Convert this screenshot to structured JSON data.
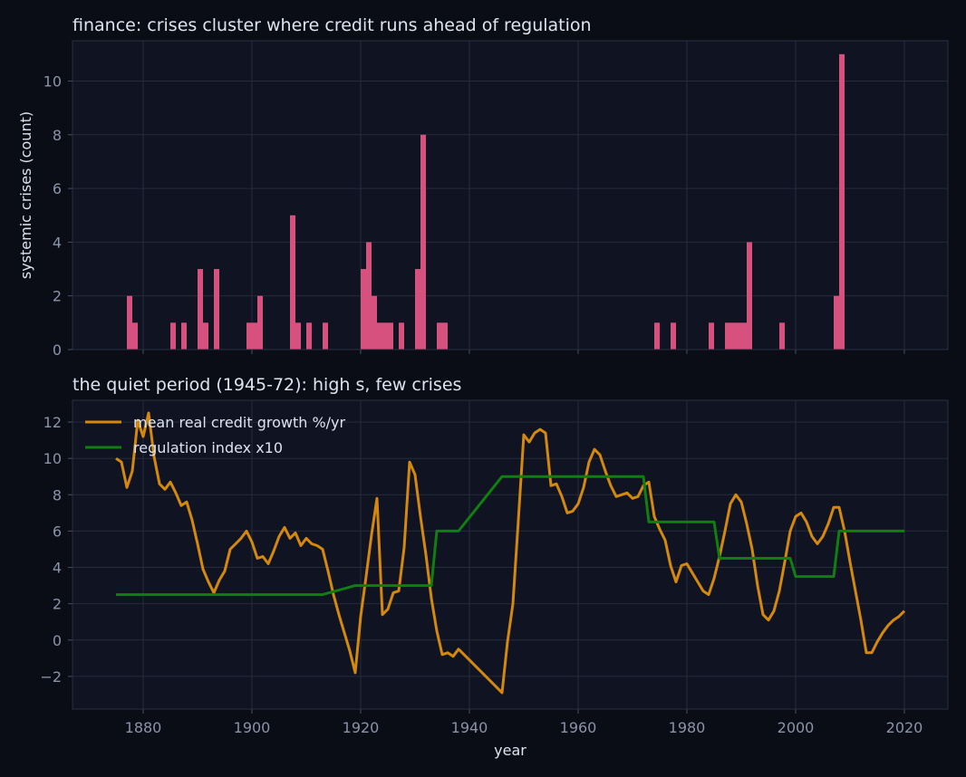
{
  "chart_data": [
    {
      "type": "bar",
      "title": "finance: crises cluster where credit runs ahead of regulation",
      "xlabel": "",
      "ylabel": "systemic crises (count)",
      "xlim": [
        1867,
        2028
      ],
      "ylim": [
        0,
        11.5
      ],
      "yticks": [
        0,
        2,
        4,
        6,
        8,
        10
      ],
      "grid": true,
      "color": "#d6517d",
      "x": [
        1877,
        1878,
        1885,
        1887,
        1890,
        1891,
        1893,
        1899,
        1900,
        1901,
        1907,
        1908,
        1910,
        1913,
        1920,
        1921,
        1922,
        1923,
        1924,
        1925,
        1927,
        1930,
        1931,
        1934,
        1935,
        1974,
        1977,
        1984,
        1987,
        1988,
        1989,
        1990,
        1991,
        1997,
        2007,
        2008
      ],
      "values": [
        2,
        1,
        1,
        1,
        3,
        1,
        3,
        1,
        1,
        2,
        5,
        1,
        1,
        1,
        3,
        4,
        2,
        1,
        1,
        1,
        1,
        3,
        8,
        1,
        1,
        1,
        1,
        1,
        1,
        1,
        1,
        1,
        4,
        1,
        2,
        11
      ]
    },
    {
      "type": "line",
      "title": "the quiet period (1945-72): high s, few crises",
      "xlabel": "year",
      "ylabel": "",
      "xlim": [
        1867,
        2028
      ],
      "ylim": [
        -3.8,
        13.2
      ],
      "yticks": [
        -2,
        0,
        2,
        4,
        6,
        8,
        10,
        12
      ],
      "xticks": [
        1880,
        1900,
        1920,
        1940,
        1960,
        1980,
        2000,
        2020
      ],
      "grid": true,
      "legend": "top-left",
      "series": [
        {
          "name": "mean real credit growth %/yr",
          "color": "#d4890c",
          "x": [
            1875,
            1876,
            1877,
            1878,
            1879,
            1880,
            1881,
            1882,
            1883,
            1884,
            1885,
            1886,
            1887,
            1888,
            1889,
            1890,
            1891,
            1892,
            1893,
            1894,
            1895,
            1896,
            1897,
            1898,
            1899,
            1900,
            1901,
            1902,
            1903,
            1904,
            1905,
            1906,
            1907,
            1908,
            1909,
            1910,
            1911,
            1912,
            1913,
            1914,
            1915,
            1916,
            1917,
            1918,
            1919,
            1920,
            1921,
            1922,
            1923,
            1924,
            1925,
            1926,
            1927,
            1928,
            1929,
            1930,
            1931,
            1932,
            1933,
            1934,
            1935,
            1936,
            1937,
            1938,
            1946,
            1947,
            1948,
            1949,
            1950,
            1951,
            1952,
            1953,
            1954,
            1955,
            1956,
            1957,
            1958,
            1959,
            1960,
            1961,
            1962,
            1963,
            1964,
            1965,
            1966,
            1967,
            1968,
            1969,
            1970,
            1971,
            1972,
            1973,
            1974,
            1975,
            1976,
            1977,
            1978,
            1979,
            1980,
            1981,
            1982,
            1983,
            1984,
            1985,
            1986,
            1987,
            1988,
            1989,
            1990,
            1991,
            1992,
            1993,
            1994,
            1995,
            1996,
            1997,
            1998,
            1999,
            2000,
            2001,
            2002,
            2003,
            2004,
            2005,
            2006,
            2007,
            2008,
            2009,
            2010,
            2011,
            2012,
            2013,
            2014,
            2015,
            2016,
            2017,
            2018,
            2019,
            2020
          ],
          "values": [
            10.0,
            9.8,
            8.4,
            9.3,
            12.1,
            11.2,
            12.5,
            10.1,
            8.6,
            8.3,
            8.7,
            8.1,
            7.4,
            7.6,
            6.6,
            5.3,
            3.9,
            3.2,
            2.6,
            3.3,
            3.8,
            5.0,
            5.3,
            5.6,
            6.0,
            5.4,
            4.5,
            4.6,
            4.2,
            4.9,
            5.7,
            6.2,
            5.6,
            5.9,
            5.2,
            5.6,
            5.3,
            5.2,
            5.0,
            3.8,
            2.5,
            1.4,
            0.4,
            -0.6,
            -1.8,
            1.3,
            3.5,
            5.8,
            7.8,
            1.4,
            1.7,
            2.6,
            2.7,
            5.1,
            9.8,
            9.1,
            6.8,
            4.7,
            2.3,
            0.5,
            -0.8,
            -0.7,
            -0.9,
            -0.5,
            -2.9,
            -0.1,
            2.0,
            6.6,
            11.3,
            10.9,
            11.4,
            11.6,
            11.4,
            8.5,
            8.6,
            7.9,
            7.0,
            7.1,
            7.5,
            8.4,
            9.8,
            10.5,
            10.2,
            9.3,
            8.5,
            7.9,
            8.0,
            8.1,
            7.8,
            7.9,
            8.5,
            8.7,
            6.8,
            6.1,
            5.5,
            4.1,
            3.2,
            4.1,
            4.2,
            3.7,
            3.2,
            2.7,
            2.5,
            3.4,
            4.6,
            6.0,
            7.5,
            8.0,
            7.6,
            6.4,
            5.0,
            3.0,
            1.4,
            1.1,
            1.6,
            2.7,
            4.3,
            6.0,
            6.8,
            7.0,
            6.5,
            5.7,
            5.3,
            5.7,
            6.4,
            7.3,
            7.3,
            6.0,
            4.3,
            2.7,
            1.1,
            -0.7,
            -0.7,
            -0.1,
            0.4,
            0.8,
            1.1,
            1.3,
            1.6
          ]
        },
        {
          "name": "regulation index x10",
          "color": "#0f7f0f",
          "x": [
            1875,
            1913,
            1919,
            1933,
            1934,
            1938,
            1946,
            1972,
            1973,
            1985,
            1986,
            1999,
            2000,
            2007,
            2008,
            2020
          ],
          "values": [
            2.5,
            2.5,
            3.0,
            3.0,
            6.0,
            6.0,
            9.0,
            9.0,
            6.5,
            6.5,
            4.5,
            4.5,
            3.5,
            3.5,
            6.0,
            6.0
          ]
        }
      ]
    }
  ]
}
